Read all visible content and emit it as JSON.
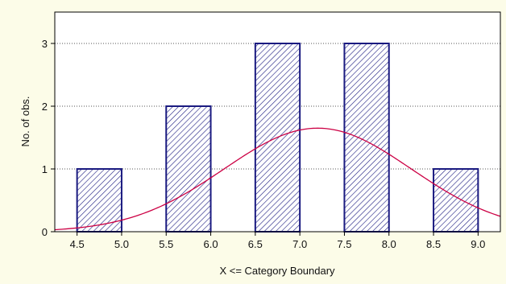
{
  "chart_data": {
    "type": "bar",
    "subtype": "histogram",
    "title": "",
    "xlabel": "X <= Category Boundary",
    "ylabel": "No. of obs.",
    "xlim": [
      4.25,
      9.25
    ],
    "ylim": [
      0,
      3.5
    ],
    "x_ticks": [
      "4.5",
      "5.0",
      "5.5",
      "6.0",
      "6.5",
      "7.0",
      "7.5",
      "8.0",
      "8.5",
      "9.0"
    ],
    "y_ticks": [
      "0",
      "1",
      "2",
      "3"
    ],
    "bins": [
      {
        "start": 4.5,
        "end": 5.0,
        "count": 1
      },
      {
        "start": 5.5,
        "end": 6.0,
        "count": 2
      },
      {
        "start": 6.5,
        "end": 7.0,
        "count": 3
      },
      {
        "start": 7.5,
        "end": 8.0,
        "count": 3
      },
      {
        "start": 8.5,
        "end": 9.0,
        "count": 1
      }
    ],
    "fitted_curve": {
      "type": "normal",
      "mean": 7.2,
      "peak": 1.65,
      "sd": 1.05,
      "color": "#cc0044"
    },
    "bar_fill": "#ffffff",
    "bar_stroke": "#1a1a80",
    "bar_hatch": "#1a1a80",
    "background": "#fcfce8",
    "plot_background": "#ffffff",
    "grid": "horizontal-dotted",
    "legend": "none"
  }
}
